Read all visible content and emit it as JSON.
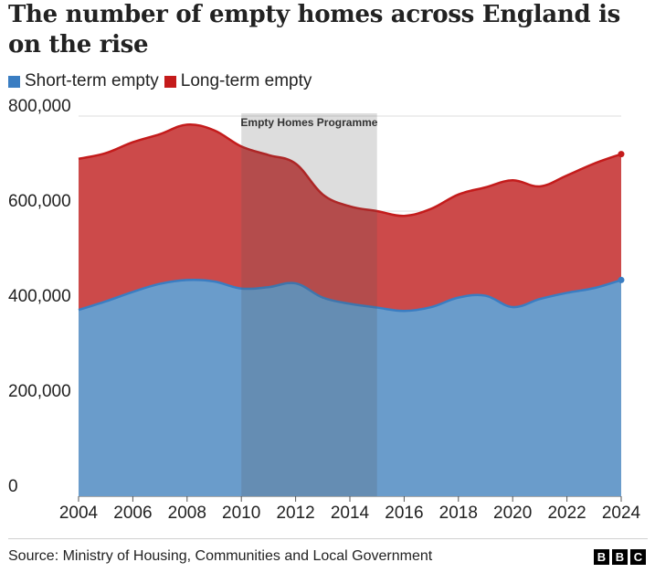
{
  "title": "The number of empty homes across England is on the rise",
  "source": "Source: Ministry of Housing, Communities and Local Government",
  "logo": [
    "B",
    "B",
    "C"
  ],
  "colors": {
    "short_term": "#3a7dc2",
    "long_term": "#c41b1b",
    "short_term_fill": "#6a9ccb",
    "long_term_fill": "#cc4a4a",
    "shade": "#555555"
  },
  "chart_data": {
    "type": "area",
    "stacked": false,
    "title": "The number of empty homes across England is on the rise",
    "xlabel": "",
    "ylabel": "",
    "xlim": [
      2004,
      2024
    ],
    "ylim": [
      0,
      800000
    ],
    "x_ticks": [
      2004,
      2006,
      2008,
      2010,
      2012,
      2014,
      2016,
      2018,
      2020,
      2022,
      2024
    ],
    "x_tick_labels": [
      "2004",
      "2006",
      "2008",
      "2010",
      "2012",
      "2014",
      "2016",
      "2018",
      "2020",
      "2022",
      "2024"
    ],
    "y_ticks": [
      0,
      200000,
      400000,
      600000,
      800000
    ],
    "y_tick_labels": [
      "0",
      "200,000",
      "400,000",
      "600,000",
      "800,000"
    ],
    "legend": [
      {
        "key": "short_term",
        "label": "Short-term empty"
      },
      {
        "key": "long_term",
        "label": "Long-term empty"
      }
    ],
    "x": [
      2004,
      2005,
      2006,
      2007,
      2008,
      2009,
      2010,
      2011,
      2012,
      2013,
      2014,
      2015,
      2016,
      2017,
      2018,
      2019,
      2020,
      2021,
      2022,
      2023,
      2024
    ],
    "series": [
      {
        "name": "Long-term empty",
        "key": "long_term",
        "values": [
          710000,
          722000,
          745000,
          762000,
          782000,
          770000,
          736000,
          718000,
          700000,
          635000,
          610000,
          600000,
          590000,
          605000,
          635000,
          650000,
          665000,
          652000,
          675000,
          700000,
          720000
        ]
      },
      {
        "name": "Short-term empty",
        "key": "short_term",
        "values": [
          392000,
          410000,
          430000,
          447000,
          455000,
          452000,
          437000,
          440000,
          448000,
          418000,
          405000,
          397000,
          390000,
          398000,
          418000,
          422000,
          398000,
          415000,
          428000,
          438000,
          455000
        ]
      }
    ],
    "annotations": [
      {
        "type": "shaded_range",
        "x_start": 2010,
        "x_end": 2015,
        "label": "Empty Homes Programme"
      }
    ],
    "end_markers": true
  }
}
